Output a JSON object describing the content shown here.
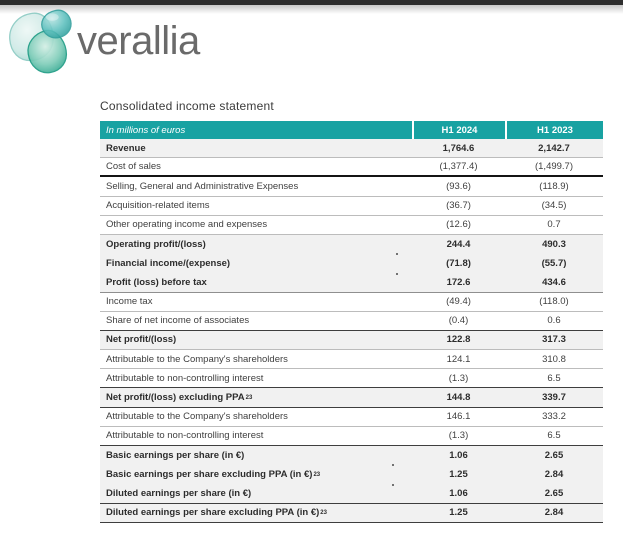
{
  "logo": {
    "brand": "verallia",
    "icon": "verallia-bubbles-logo"
  },
  "title": "Consolidated income statement",
  "colors": {
    "accent_teal": "#18a2a2",
    "header_text": "#ffffff",
    "shaded_row_bg": "#f1f1f1",
    "body_text": "#3f3f3f",
    "logo_text": "#6a6a6a",
    "top_bar": "#2e2e2e"
  },
  "table": {
    "header": {
      "label": "In millions of euros",
      "columns": [
        "H1 2024",
        "H1 2023"
      ]
    },
    "rows": [
      {
        "label": "Revenue",
        "values": [
          "1,764.6",
          "2,142.7"
        ],
        "bold": true,
        "shaded": true,
        "border": "light"
      },
      {
        "label": "Cost of sales",
        "values": [
          "(1,377.4)",
          "(1,499.7)"
        ],
        "bold": false,
        "shaded": false,
        "border": "thick"
      },
      {
        "label": "Selling, General and Administrative Expenses",
        "values": [
          "(93.6)",
          "(118.9)"
        ],
        "bold": false,
        "shaded": false,
        "border": "light"
      },
      {
        "label": "Acquisition-related items",
        "values": [
          "(36.7)",
          "(34.5)"
        ],
        "bold": false,
        "shaded": false,
        "border": "light"
      },
      {
        "label": "Other operating income and expenses",
        "values": [
          "(12.6)",
          "0.7"
        ],
        "bold": false,
        "shaded": false,
        "border": "light"
      },
      {
        "label": "Operating profit/(loss)",
        "values": [
          "244.4",
          "490.3"
        ],
        "bold": true,
        "shaded": true,
        "border": "none"
      },
      {
        "label": "Financial income/(expense)",
        "values": [
          "(71.8)",
          "(55.7)"
        ],
        "bold": true,
        "shaded": true,
        "border": "none"
      },
      {
        "label": "Profit (loss) before tax",
        "values": [
          "172.6",
          "434.6"
        ],
        "bold": true,
        "shaded": true,
        "border": "med"
      },
      {
        "label": "Income tax",
        "values": [
          "(49.4)",
          "(118.0)"
        ],
        "bold": false,
        "shaded": false,
        "border": "light"
      },
      {
        "label": "Share of net income of associates",
        "values": [
          "(0.4)",
          "0.6"
        ],
        "bold": false,
        "shaded": false,
        "border": "dark"
      },
      {
        "label": "Net profit/(loss)",
        "values": [
          "122.8",
          "317.3"
        ],
        "bold": true,
        "shaded": true,
        "border": "light"
      },
      {
        "label": "Attributable to the Company's shareholders",
        "values": [
          "124.1",
          "310.8"
        ],
        "bold": false,
        "shaded": false,
        "border": "light"
      },
      {
        "label": "Attributable to non-controlling interest",
        "values": [
          "(1.3)",
          "6.5"
        ],
        "bold": false,
        "shaded": false,
        "border": "dark"
      },
      {
        "label": "Net profit/(loss) excluding PPA",
        "sup": "23",
        "values": [
          "144.8",
          "339.7"
        ],
        "bold": true,
        "shaded": true,
        "border": "dark"
      },
      {
        "label": "Attributable to the Company's shareholders",
        "values": [
          "146.1",
          "333.2"
        ],
        "bold": false,
        "shaded": false,
        "border": "light"
      },
      {
        "label": "Attributable to non-controlling interest",
        "values": [
          "(1.3)",
          "6.5"
        ],
        "bold": false,
        "shaded": false,
        "border": "dark"
      },
      {
        "label": "Basic earnings per share (in €)",
        "values": [
          "1.06",
          "2.65"
        ],
        "bold": true,
        "shaded": true,
        "border": "none"
      },
      {
        "label": "Basic earnings per share excluding PPA (in €)",
        "sup": "23",
        "values": [
          "1.25",
          "2.84"
        ],
        "bold": true,
        "shaded": true,
        "border": "none"
      },
      {
        "label": "Diluted earnings per share (in €)",
        "values": [
          "1.06",
          "2.65"
        ],
        "bold": true,
        "shaded": true,
        "border": "dark"
      },
      {
        "label": "Diluted earnings per share excluding PPA (in €)",
        "sup": "23",
        "values": [
          "1.25",
          "2.84"
        ],
        "bold": true,
        "shaded": true,
        "border": "dark"
      }
    ]
  }
}
